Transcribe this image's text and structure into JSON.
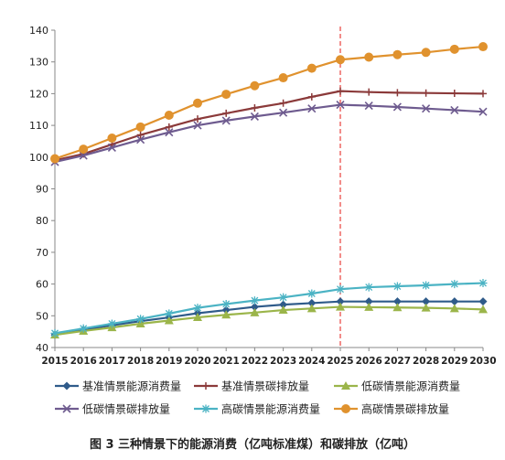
{
  "chart_data": {
    "type": "line",
    "categories": [
      "2015",
      "2016",
      "2017",
      "2018",
      "2019",
      "2020",
      "2021",
      "2022",
      "2023",
      "2024",
      "2025",
      "2026",
      "2027",
      "2028",
      "2029",
      "2030"
    ],
    "ylim": [
      40,
      140
    ],
    "yticks": [
      40,
      50,
      60,
      70,
      80,
      90,
      100,
      110,
      120,
      130,
      140
    ],
    "grid": false,
    "legend_placement": "bottom",
    "reference_line": {
      "x": "2025",
      "style": "dashed",
      "color": "#e8413c"
    },
    "caption": "图 3  三种情景下的能源消费（亿吨标准煤）和碳排放（亿吨）",
    "series": [
      {
        "name": "基准情景能源消费量",
        "color": "#2f5b8a",
        "marker": "diamond",
        "values": [
          44.0,
          45.6,
          47.0,
          48.3,
          49.5,
          50.8,
          51.8,
          52.8,
          53.5,
          54.0,
          54.5,
          54.5,
          54.5,
          54.5,
          54.5,
          54.5
        ]
      },
      {
        "name": "基准情景碳排放量",
        "color": "#8b3a3a",
        "marker": "plus",
        "values": [
          99.0,
          101.0,
          104.0,
          107.0,
          109.5,
          112.0,
          113.8,
          115.5,
          117.0,
          119.0,
          120.8,
          120.5,
          120.3,
          120.2,
          120.1,
          120.0
        ]
      },
      {
        "name": "低碳情景能源消费量",
        "color": "#9bb54a",
        "marker": "triangle",
        "values": [
          44.0,
          45.2,
          46.3,
          47.5,
          48.5,
          49.5,
          50.3,
          51.0,
          51.8,
          52.3,
          52.8,
          52.7,
          52.6,
          52.5,
          52.3,
          52.0
        ]
      },
      {
        "name": "低碳情景碳排放量",
        "color": "#6e5b8f",
        "marker": "x",
        "values": [
          98.5,
          100.5,
          103.0,
          105.5,
          107.8,
          110.0,
          111.5,
          112.8,
          114.0,
          115.3,
          116.5,
          116.2,
          115.8,
          115.3,
          114.8,
          114.3
        ]
      },
      {
        "name": "高碳情景能源消费量",
        "color": "#4bb3c4",
        "marker": "star",
        "values": [
          44.5,
          46.0,
          47.5,
          49.0,
          50.7,
          52.5,
          53.7,
          54.8,
          55.8,
          57.0,
          58.4,
          59.0,
          59.3,
          59.6,
          60.0,
          60.3
        ]
      },
      {
        "name": "高碳情景碳排放量",
        "color": "#e0922e",
        "marker": "circle",
        "values": [
          99.5,
          102.5,
          106.0,
          109.5,
          113.2,
          117.0,
          119.8,
          122.5,
          125.0,
          128.0,
          130.7,
          131.5,
          132.3,
          133.0,
          134.0,
          134.8
        ]
      }
    ]
  }
}
